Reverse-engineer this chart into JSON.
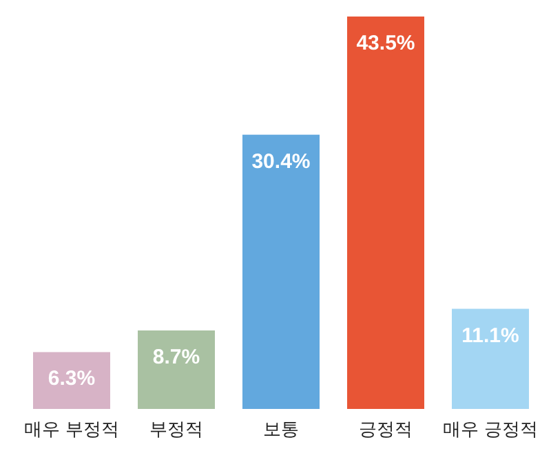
{
  "chart_data": {
    "type": "bar",
    "categories": [
      "매우 부정적",
      "부정적",
      "보통",
      "긍정적",
      "매우 긍정적"
    ],
    "values": [
      6.3,
      8.7,
      30.4,
      43.5,
      11.1
    ],
    "value_labels": [
      "6.3%",
      "8.7%",
      "30.4%",
      "43.5%",
      "11.1%"
    ],
    "colors": [
      "#d7b3c6",
      "#a9c1a2",
      "#62a8de",
      "#e85535",
      "#a3d6f3"
    ]
  }
}
